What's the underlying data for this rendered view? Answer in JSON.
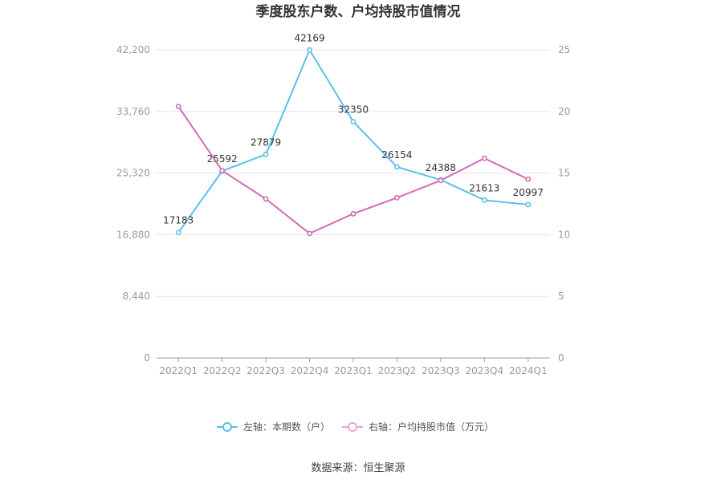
{
  "chart_data": {
    "type": "line",
    "title": "季度股东户数、户均持股市值情况",
    "categories": [
      "2022Q1",
      "2022Q2",
      "2022Q3",
      "2022Q4",
      "2023Q1",
      "2023Q2",
      "2023Q3",
      "2023Q4",
      "2024Q1"
    ],
    "left_axis": {
      "ticks": [
        "0",
        "8,440",
        "16,880",
        "25,320",
        "33,760",
        "42,200"
      ],
      "min": 0,
      "max": 42200
    },
    "right_axis": {
      "ticks": [
        "0",
        "5",
        "10",
        "15",
        "20",
        "25"
      ],
      "min": 0,
      "max": 25
    },
    "series": [
      {
        "name": "左轴：本期数（户）",
        "axis": "left",
        "color": "#5bc0eb",
        "values": [
          17183,
          25592,
          27879,
          42169,
          32350,
          26154,
          24388,
          21613,
          20997
        ],
        "labels": [
          "17183",
          "25592",
          "27879",
          "42169",
          "32350",
          "26154",
          "24388",
          "21613",
          "20997"
        ]
      },
      {
        "name": "右轴：户均持股市值（万元）",
        "axis": "right",
        "color": "#d36bb5",
        "values": [
          20.4,
          15.2,
          12.9,
          10.1,
          11.7,
          13.0,
          14.4,
          16.2,
          14.5
        ]
      }
    ],
    "grid": true,
    "legend_position": "bottom"
  },
  "footer": {
    "source": "数据来源：恒生聚源"
  }
}
